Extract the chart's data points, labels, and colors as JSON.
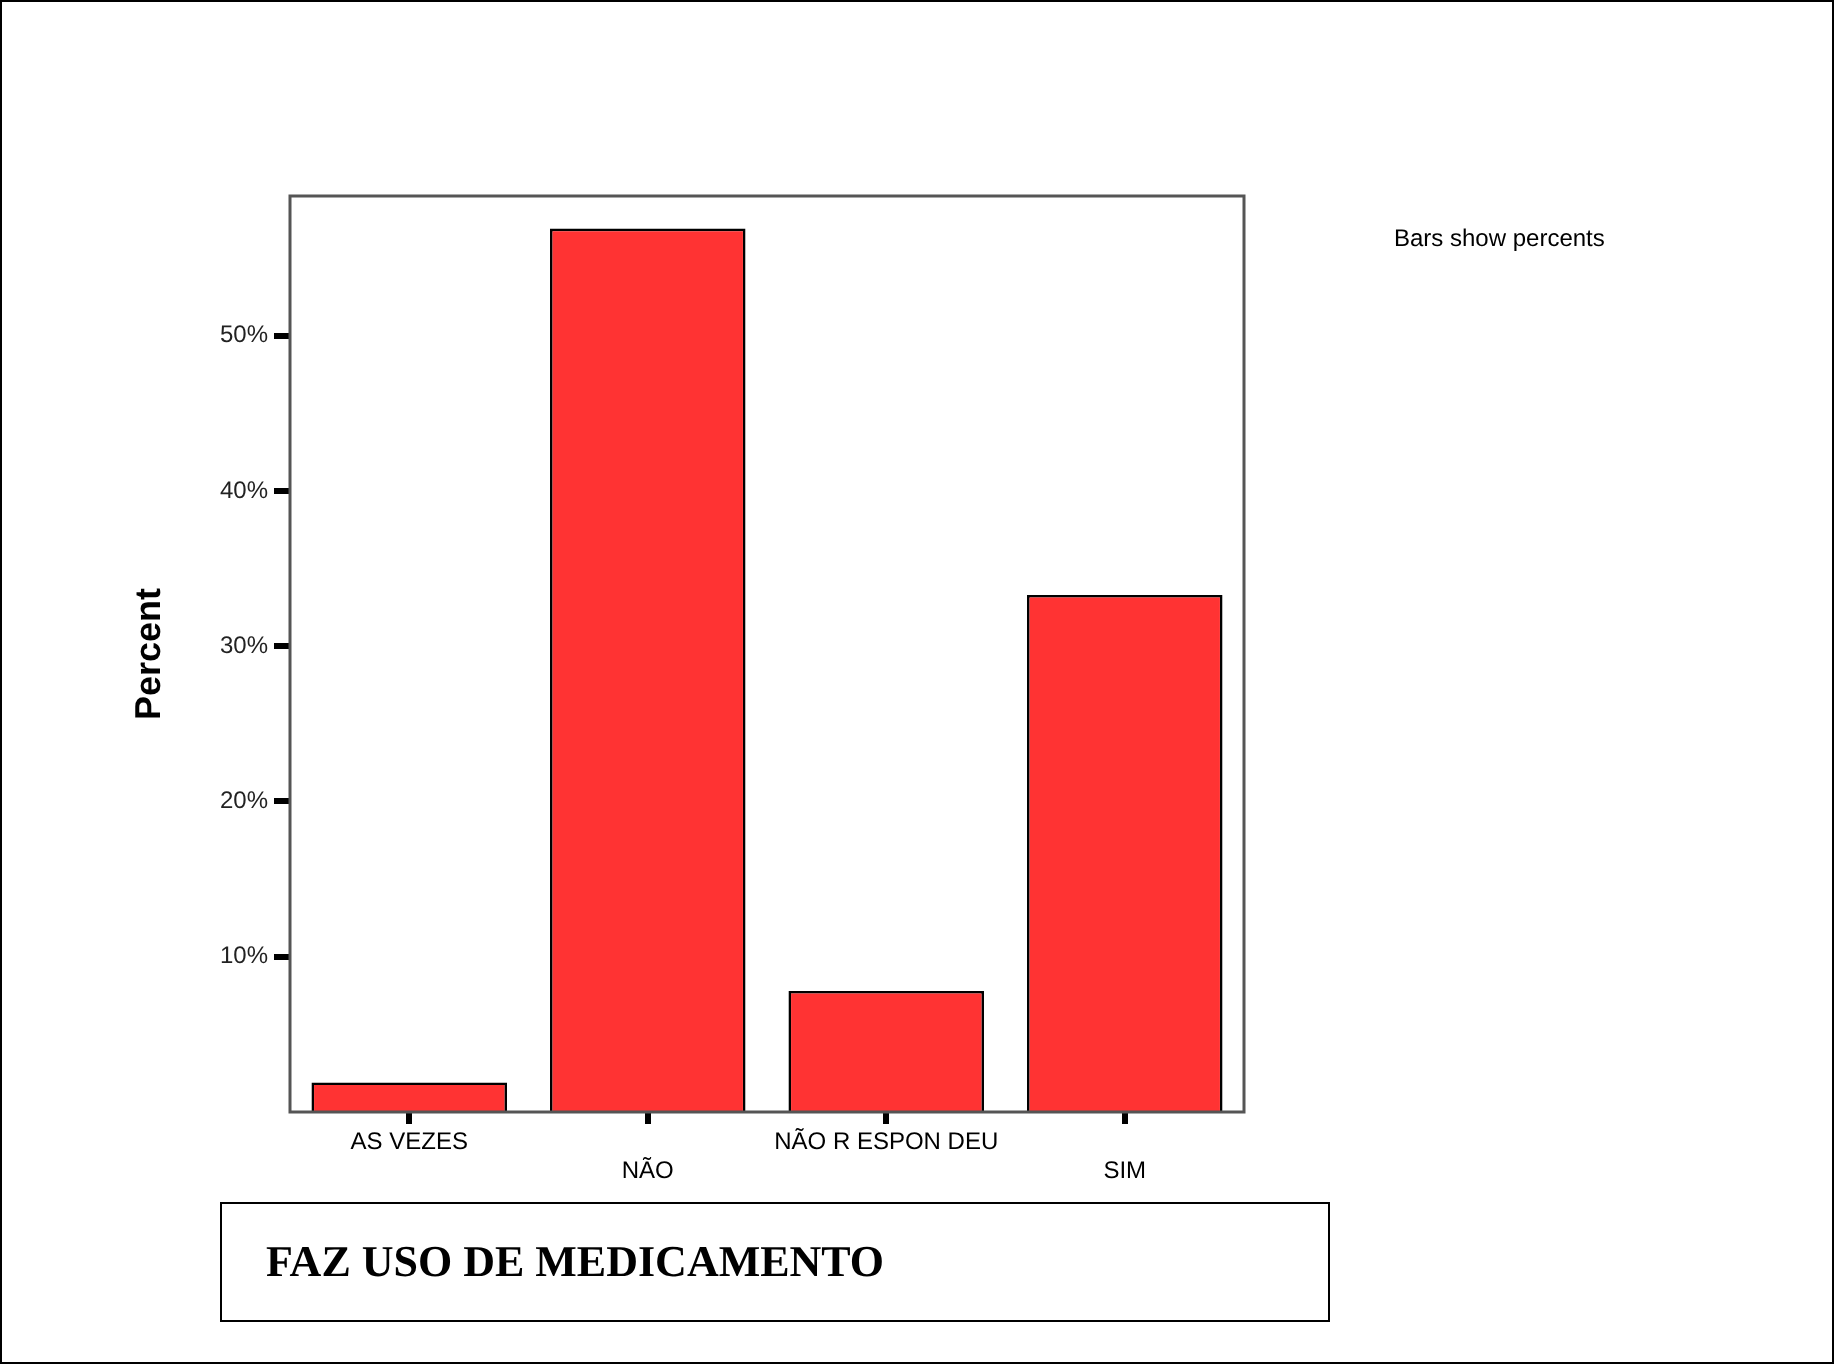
{
  "chart_data": {
    "type": "bar",
    "title": "FAZ USO DE MEDICAMENTO",
    "ylabel": "Percent",
    "categories": [
      "AS VEZES",
      "NÃO",
      "NÃO R ESPON DEU",
      "SIM"
    ],
    "values": [
      1.9,
      56.9,
      7.8,
      33.3
    ],
    "color": "#ff3333",
    "ylim": [
      0,
      59
    ],
    "yticks": [
      {
        "value": 10,
        "label": "10%"
      },
      {
        "value": 20,
        "label": "20%"
      },
      {
        "value": 30,
        "label": "30%"
      },
      {
        "value": 40,
        "label": "40%"
      },
      {
        "value": 50,
        "label": "50%"
      }
    ],
    "annotations": [
      "Bars show percents"
    ]
  }
}
